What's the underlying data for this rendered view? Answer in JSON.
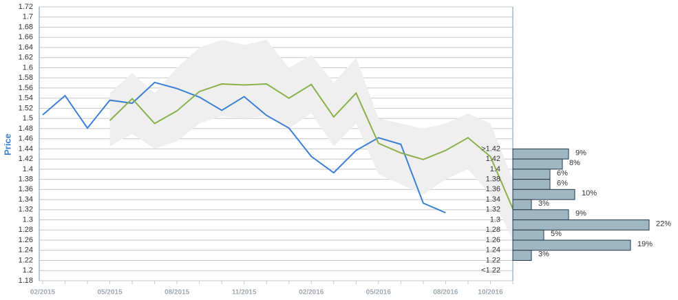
{
  "chart_data": [
    {
      "type": "line",
      "y_label": "Price",
      "categories": [
        "02/2015",
        null,
        null,
        "05/2015",
        null,
        null,
        "08/2015",
        null,
        null,
        "11/2015",
        null,
        null,
        "02/2016",
        null,
        null,
        "05/2016",
        null,
        null,
        "08/2016",
        null,
        "10/2016",
        null
      ],
      "series": [
        {
          "color": "#3a7fd5",
          "values": [
            1.507,
            1.545,
            1.481,
            1.536,
            1.53,
            1.571,
            1.559,
            1.542,
            1.516,
            1.543,
            1.506,
            1.481,
            1.425,
            1.393,
            1.437,
            1.462,
            1.449,
            1.333,
            1.314,
            null,
            null,
            null
          ]
        },
        {
          "color": "#8ab04a",
          "values": [
            null,
            null,
            null,
            1.496,
            1.539,
            1.49,
            1.515,
            1.553,
            1.568,
            1.566,
            1.568,
            1.54,
            1.567,
            1.503,
            1.55,
            1.451,
            1.432,
            1.419,
            1.437,
            1.462,
            1.425,
            1.322
          ]
        }
      ],
      "band": {
        "color": "#efefef",
        "upper": [
          null,
          null,
          null,
          1.55,
          1.59,
          1.55,
          1.6,
          1.64,
          1.655,
          1.645,
          1.655,
          1.6,
          1.625,
          1.57,
          1.62,
          1.5,
          1.49,
          1.48,
          1.49,
          1.51,
          1.49,
          1.38
        ],
        "lower": [
          null,
          null,
          null,
          1.445,
          1.47,
          1.44,
          1.455,
          1.49,
          1.505,
          1.5,
          1.505,
          1.48,
          1.51,
          1.445,
          1.49,
          1.39,
          1.37,
          1.35,
          1.38,
          1.4,
          1.35,
          1.26
        ]
      },
      "ylim": [
        1.18,
        1.72
      ],
      "yticks": [
        1.18,
        1.2,
        1.22,
        1.24,
        1.26,
        1.28,
        1.3,
        1.32,
        1.34,
        1.36,
        1.38,
        1.4,
        1.42,
        1.44,
        1.46,
        1.48,
        1.5,
        1.52,
        1.54,
        1.56,
        1.58,
        1.6,
        1.62,
        1.64,
        1.66,
        1.68,
        1.7,
        1.72
      ],
      "grid": true
    },
    {
      "type": "hbar",
      "color": "#9fb6c3",
      "categories": [
        ">1.42",
        "1.42",
        "1.4",
        "1.38",
        "1.36",
        "1.34",
        "1.32",
        "1.3",
        "1.28",
        "1.26",
        "1.24",
        "1.22",
        "<1.22"
      ],
      "values": [
        9,
        8,
        6,
        6,
        10,
        3,
        9,
        22,
        5,
        19,
        3,
        null,
        null
      ],
      "value_labels": [
        "9%",
        "8%",
        "6%",
        "6%",
        "10%",
        "3%",
        "9%",
        "22%",
        "5%",
        "19%",
        "3%",
        null,
        null
      ]
    }
  ]
}
